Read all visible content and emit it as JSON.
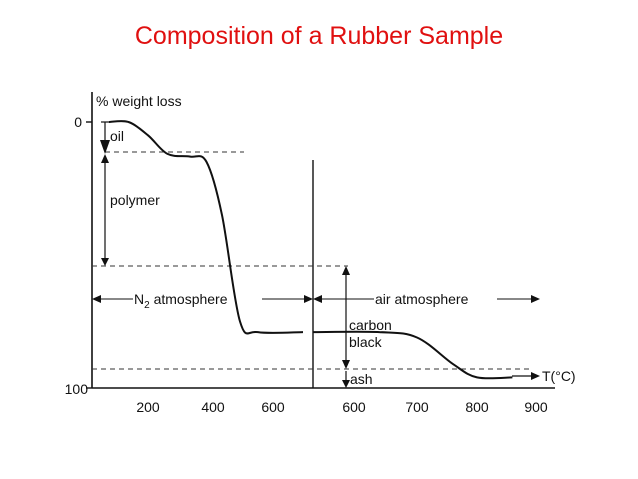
{
  "slide": {
    "title": "Composition of a Rubber Sample"
  },
  "chart_data": {
    "type": "line",
    "title": "Composition of a Rubber Sample",
    "ylabel": "% weight loss",
    "ylim": [
      0,
      100
    ],
    "y_ticks": [
      "0",
      "100"
    ],
    "panels": [
      {
        "name": "N2 atmosphere",
        "x_ticks": [
          "200",
          "400",
          "600"
        ],
        "xlim": [
          60,
          700
        ],
        "points": [
          [
            80,
            0
          ],
          [
            140,
            0
          ],
          [
            200,
            5
          ],
          [
            260,
            12
          ],
          [
            330,
            13
          ],
          [
            380,
            15
          ],
          [
            430,
            35
          ],
          [
            490,
            75
          ],
          [
            550,
            79
          ],
          [
            700,
            79
          ]
        ]
      },
      {
        "name": "air atmosphere",
        "x_ticks": [
          "600",
          "700",
          "800",
          "900"
        ],
        "xlim": [
          520,
          960
        ],
        "x_unit_label": "T(°C)",
        "points": [
          [
            520,
            79
          ],
          [
            640,
            79
          ],
          [
            700,
            81
          ],
          [
            760,
            91
          ],
          [
            800,
            96
          ],
          [
            860,
            96
          ]
        ]
      }
    ],
    "annotations": {
      "oil": "oil",
      "polymer": "polymer",
      "n2_prefix": "N",
      "n2_sub": "2",
      "n2_suffix": " atmosphere",
      "air": "air atmosphere",
      "carbon": "carbon",
      "black": "black",
      "ash": "ash"
    },
    "levels": {
      "oil": 13,
      "polymer": 79,
      "carbon_black": 96
    },
    "colors": {
      "title": "#e01010",
      "line": "#111111",
      "dash": "#333333"
    }
  }
}
